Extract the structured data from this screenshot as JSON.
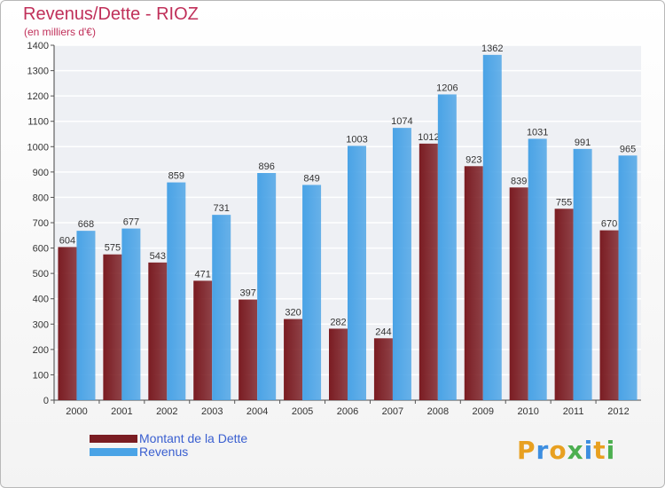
{
  "chart_data": {
    "type": "bar",
    "title": "Revenus/Dette - RIOZ",
    "subtitle": "(en milliers d'€)",
    "categories": [
      "2000",
      "2001",
      "2002",
      "2003",
      "2004",
      "2005",
      "2006",
      "2007",
      "2008",
      "2009",
      "2010",
      "2011",
      "2012"
    ],
    "series": [
      {
        "name": "Montant de la Dette",
        "color": "#7a1c22",
        "values": [
          604,
          575,
          543,
          471,
          397,
          320,
          282,
          244,
          1012,
          923,
          839,
          755,
          670
        ]
      },
      {
        "name": "Revenus",
        "color": "#4aa3e6",
        "values": [
          668,
          677,
          859,
          731,
          896,
          849,
          1003,
          1074,
          1206,
          1362,
          1031,
          991,
          965
        ]
      }
    ],
    "yticks": [
      0,
      100,
      200,
      300,
      400,
      500,
      600,
      700,
      800,
      900,
      1000,
      1100,
      1200,
      1300,
      1400
    ],
    "ylim": [
      0,
      1400
    ],
    "grid": true,
    "legend_position": "bottom-left"
  },
  "logo": {
    "text": "Proxiti",
    "letters": [
      "P",
      "r",
      "o",
      "x",
      "i",
      "t",
      "i"
    ],
    "colors": [
      "#e8a020",
      "#3d8ee0",
      "#e8a020",
      "#4caf50",
      "#3d8ee0",
      "#e8a020",
      "#4caf50"
    ]
  }
}
